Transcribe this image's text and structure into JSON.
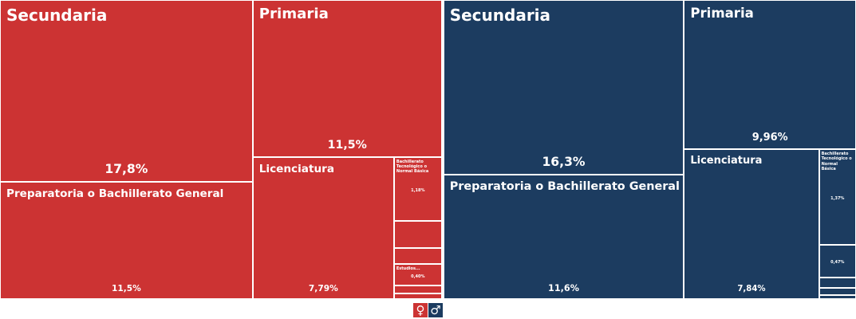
{
  "chart_data": {
    "type": "treemap",
    "series": [
      {
        "name": "♀",
        "color": "#cc3333",
        "categories": [
          "Secundaria",
          "Preparatoria o Bachillerato General",
          "Primaria",
          "Licenciatura",
          "Bachillerato Tecnológico o Normal Básica",
          null,
          null,
          "Estudios...",
          null,
          null
        ],
        "values": [
          17.8,
          11.5,
          11.5,
          7.79,
          1.18,
          0.5,
          0.3,
          0.4,
          0.15,
          0.1
        ],
        "value_labels": [
          "17,8%",
          "11,5%",
          "11,5%",
          "7,79%",
          "1,18%",
          null,
          null,
          "0,40%",
          null,
          null
        ]
      },
      {
        "name": "♂",
        "color": "#1c3c60",
        "categories": [
          "Secundaria",
          "Preparatoria o Bachillerato General",
          "Primaria",
          "Licenciatura",
          "Bachillerato Tecnológico o Normal Básica",
          null,
          null,
          null,
          null
        ],
        "values": [
          16.3,
          11.6,
          9.96,
          7.84,
          1.37,
          0.47,
          0.15,
          0.1,
          0.06
        ],
        "value_labels": [
          "16,3%",
          "11,6%",
          "9,96%",
          "7,84%",
          "1,37%",
          "0,47%",
          null,
          null,
          null
        ]
      }
    ]
  }
}
